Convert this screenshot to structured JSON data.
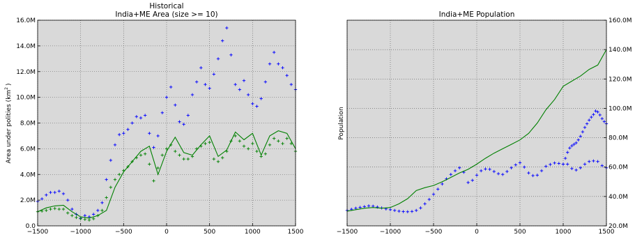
{
  "chart_data": [
    {
      "type": "scatter",
      "title": "Historical",
      "subtitle": "India+ME Area (size >= 10)",
      "xlabel": "",
      "ylabel": "Area under polities (km",
      "ylabel_sup": "2",
      "ylabel_close": ")",
      "xlim": [
        -1500,
        1500
      ],
      "ylim": [
        0,
        16.0
      ],
      "grid": true,
      "x_ticks": [
        -1500,
        -1000,
        -500,
        0,
        500,
        1000,
        1500
      ],
      "x_tick_labels": [
        "−1500",
        "−1000",
        "−500",
        "0",
        "500",
        "1000",
        "1500"
      ],
      "y_ticks": [
        0,
        2,
        4,
        6,
        8,
        10,
        12,
        14,
        16
      ],
      "y_tick_labels": [
        "0.0",
        "2.0M",
        "4.0M",
        "6.0M",
        "8.0M",
        "10.0M",
        "12.0M",
        "14.0M",
        "16.0M"
      ],
      "series": [
        {
          "marker": "+",
          "color": "#0000ff",
          "x": [
            -1500,
            -1450,
            -1400,
            -1350,
            -1300,
            -1250,
            -1200,
            -1150,
            -1100,
            -1050,
            -1000,
            -950,
            -900,
            -850,
            -800,
            -750,
            -700,
            -650,
            -600,
            -550,
            -500,
            -450,
            -400,
            -350,
            -300,
            -250,
            -200,
            -150,
            -100,
            -50,
            0,
            50,
            100,
            150,
            200,
            250,
            300,
            350,
            400,
            450,
            500,
            550,
            600,
            650,
            700,
            750,
            800,
            850,
            900,
            950,
            1000,
            1050,
            1100,
            1150,
            1200,
            1250,
            1300,
            1350,
            1400,
            1450,
            1500
          ],
          "y": [
            1.9,
            2.1,
            2.4,
            2.6,
            2.6,
            2.7,
            2.5,
            2.0,
            1.3,
            0.9,
            0.6,
            0.8,
            0.7,
            0.9,
            1.2,
            1.8,
            3.6,
            5.1,
            6.3,
            7.1,
            7.2,
            7.5,
            8.0,
            8.5,
            8.4,
            8.6,
            7.2,
            6.1,
            7.0,
            8.8,
            10.0,
            10.8,
            9.4,
            8.1,
            7.9,
            8.6,
            10.2,
            11.2,
            12.3,
            11.0,
            10.7,
            11.8,
            13.0,
            14.4,
            15.4,
            13.3,
            11.0,
            10.6,
            11.3,
            10.2,
            9.5,
            9.3,
            9.9,
            11.2,
            12.6,
            13.5,
            12.6,
            12.3,
            11.7,
            11.0,
            10.6
          ]
        },
        {
          "marker": "+",
          "color": "#008000",
          "x": [
            -1500,
            -1450,
            -1400,
            -1350,
            -1300,
            -1250,
            -1200,
            -1150,
            -1100,
            -1050,
            -1000,
            -950,
            -900,
            -850,
            -800,
            -750,
            -700,
            -650,
            -600,
            -550,
            -500,
            -450,
            -400,
            -350,
            -300,
            -250,
            -200,
            -150,
            -100,
            -50,
            0,
            50,
            100,
            150,
            200,
            250,
            300,
            350,
            400,
            450,
            500,
            550,
            600,
            650,
            700,
            750,
            800,
            850,
            900,
            950,
            1000,
            1050,
            1100,
            1150,
            1200,
            1250,
            1300,
            1350,
            1400,
            1450,
            1500
          ],
          "y": [
            1.1,
            1.15,
            1.2,
            1.3,
            1.35,
            1.3,
            1.3,
            1.0,
            0.8,
            0.65,
            0.55,
            0.5,
            0.45,
            0.55,
            0.8,
            1.2,
            2.2,
            3.0,
            3.6,
            4.0,
            4.3,
            4.6,
            5.0,
            5.3,
            5.5,
            5.6,
            4.8,
            3.5,
            4.5,
            5.5,
            6.0,
            6.3,
            5.8,
            5.5,
            5.2,
            5.2,
            5.4,
            6.0,
            6.2,
            6.4,
            6.5,
            5.2,
            5.0,
            5.3,
            5.8,
            6.6,
            7.0,
            6.6,
            6.2,
            6.0,
            6.4,
            5.8,
            5.4,
            5.6,
            6.3,
            6.8,
            6.6,
            6.4,
            6.8,
            6.4,
            5.8
          ]
        },
        {
          "marker": "line",
          "color": "#008000",
          "x": [
            -1500,
            -1400,
            -1300,
            -1200,
            -1100,
            -1000,
            -900,
            -800,
            -700,
            -600,
            -500,
            -400,
            -300,
            -200,
            -100,
            0,
            100,
            200,
            300,
            400,
            500,
            600,
            700,
            800,
            900,
            1000,
            1100,
            1200,
            1300,
            1400,
            1500
          ],
          "y": [
            1.1,
            1.4,
            1.55,
            1.6,
            1.1,
            0.7,
            0.6,
            0.8,
            1.2,
            3.0,
            4.2,
            5.0,
            5.8,
            6.2,
            4.0,
            5.8,
            6.9,
            5.7,
            5.5,
            6.3,
            7.0,
            5.4,
            5.9,
            7.3,
            6.7,
            7.2,
            5.5,
            7.0,
            7.4,
            7.2,
            6.0
          ]
        }
      ]
    },
    {
      "type": "scatter",
      "title": "India+ME Population",
      "xlabel": "",
      "ylabel": "Population",
      "xlim": [
        -1500,
        1500
      ],
      "ylim": [
        20,
        160
      ],
      "grid": true,
      "y_axis_side": "right",
      "x_ticks": [
        -1500,
        -1000,
        -500,
        0,
        500,
        1000,
        1500
      ],
      "x_tick_labels": [
        "−1500",
        "−1000",
        "−500",
        "0",
        "500",
        "1000",
        "1500"
      ],
      "y_ticks": [
        20,
        40,
        60,
        80,
        100,
        120,
        140,
        160
      ],
      "y_tick_labels": [
        "20.0M",
        "40.0M",
        "60.0M",
        "80.0M",
        "100.0M",
        "120.0M",
        "140.0M",
        "160.0M"
      ],
      "series": [
        {
          "marker": "+",
          "color": "#0000ff",
          "x": [
            -1500,
            -1450,
            -1400,
            -1350,
            -1300,
            -1250,
            -1200,
            -1150,
            -1100,
            -1050,
            -1000,
            -950,
            -900,
            -850,
            -800,
            -750,
            -700,
            -650,
            -600,
            -550,
            -500,
            -450,
            -400,
            -350,
            -300,
            -250,
            -200,
            -150,
            -100,
            -50,
            0,
            50,
            100,
            150,
            200,
            250,
            300,
            350,
            400,
            450,
            500,
            550,
            600,
            650,
            700,
            750,
            800,
            850,
            900,
            950,
            1000,
            1050,
            1100,
            1150,
            1200,
            1250,
            1300,
            1350,
            1400,
            1450,
            1500
          ],
          "y": [
            30.5,
            31.3,
            32.0,
            32.6,
            33.1,
            33.6,
            33.4,
            32.8,
            32.2,
            31.5,
            31.0,
            30.5,
            30.0,
            29.7,
            29.6,
            29.8,
            30.5,
            32.2,
            35.0,
            38.0,
            41.5,
            45.0,
            48.5,
            52.0,
            55.0,
            57.5,
            59.5,
            56.5,
            49.5,
            51.0,
            54.5,
            57.5,
            58.7,
            58.5,
            57.0,
            55.5,
            55.0,
            57.0,
            59.5,
            61.5,
            63.0,
            60.0,
            56.0,
            54.2,
            54.5,
            57.5,
            60.5,
            61.8,
            62.8,
            62.5,
            62.0,
            62.0,
            59.0,
            58.0,
            59.5,
            62.0,
            63.8,
            64.2,
            63.8,
            61.0,
            59.5
          ]
        },
        {
          "marker": "+",
          "color": "#0000ff",
          "x": [
            1000,
            1025,
            1050,
            1075,
            1100,
            1125,
            1150,
            1175,
            1200,
            1225,
            1250,
            1275,
            1300,
            1325,
            1350,
            1375,
            1400,
            1425,
            1450,
            1475,
            1500
          ],
          "y": [
            62.0,
            66.0,
            70.0,
            73.0,
            74.5,
            75.5,
            76.5,
            78.5,
            81.0,
            84.0,
            87.0,
            89.5,
            92.0,
            94.0,
            95.8,
            98.2,
            97.5,
            95.5,
            93.0,
            91.0,
            89.5
          ]
        },
        {
          "marker": "line",
          "color": "#008000",
          "x": [
            -1500,
            -1400,
            -1300,
            -1200,
            -1100,
            -1000,
            -900,
            -800,
            -700,
            -600,
            -500,
            -400,
            -300,
            -200,
            -100,
            0,
            100,
            200,
            300,
            400,
            500,
            600,
            700,
            800,
            900,
            1000,
            1100,
            1200,
            1300,
            1400,
            1500
          ],
          "y": [
            30.0,
            31.0,
            32.0,
            32.5,
            32.0,
            32.5,
            35.0,
            38.5,
            44.0,
            46.0,
            47.5,
            50.0,
            53.0,
            56.0,
            58.5,
            62.0,
            66.0,
            69.5,
            72.5,
            75.5,
            78.5,
            83.0,
            90.0,
            99.0,
            106.0,
            115.0,
            118.5,
            122.0,
            126.5,
            129.5,
            140.0
          ]
        }
      ]
    }
  ]
}
